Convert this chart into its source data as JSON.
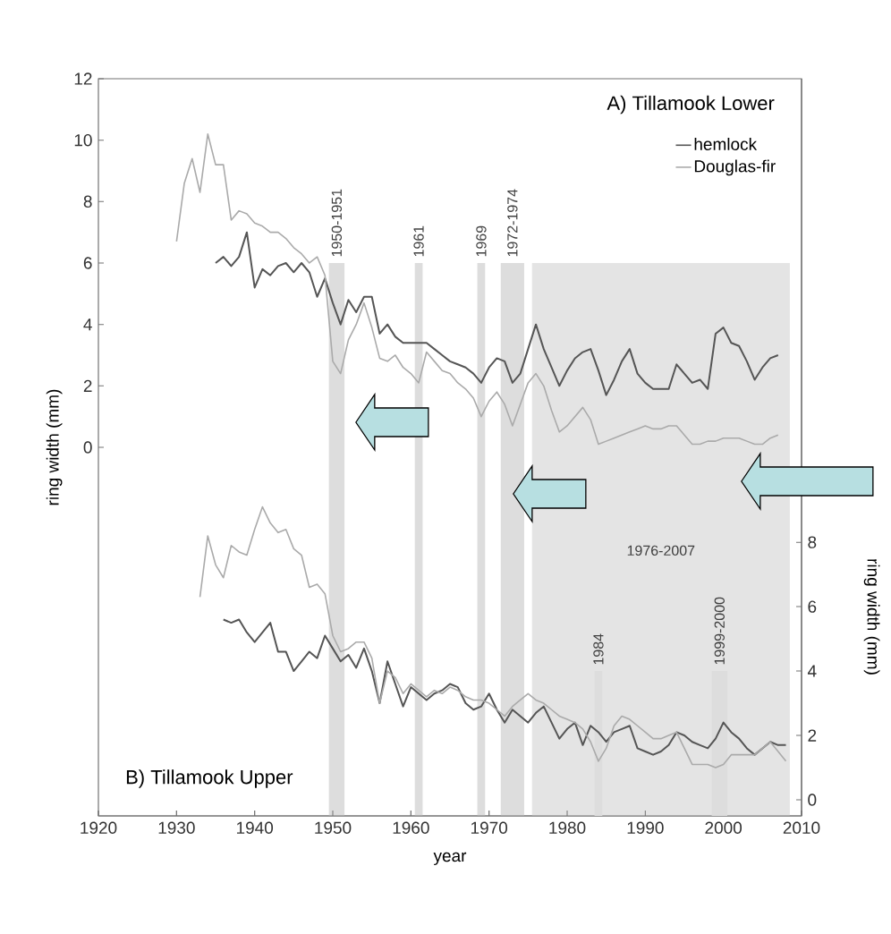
{
  "chart_data": [
    {
      "type": "line",
      "title": "A) Tillamook Lower",
      "ylabel": "ring width (mm)",
      "xlim": [
        1920,
        2010
      ],
      "xticks": [
        1920,
        1930,
        1940,
        1950,
        1960,
        1970,
        1980,
        1990,
        2000,
        2010
      ],
      "tick_labels": "y",
      "ylim": [
        -12,
        12
      ],
      "yticks": [
        0,
        2,
        4,
        6,
        8,
        10,
        12
      ],
      "legend": "top right",
      "bands": [
        {
          "axis": "x",
          "from": 1949.5,
          "to": 1951.5,
          "label": "1950-1951",
          "color": "#dddddd"
        },
        {
          "axis": "x",
          "from": 1960.5,
          "to": 1961.5,
          "label": "1961",
          "color": "#dddddd"
        },
        {
          "axis": "x",
          "from": 1968.5,
          "to": 1969.5,
          "label": "1969",
          "color": "#dddddd"
        },
        {
          "axis": "x",
          "from": 1971.5,
          "to": 1974.5,
          "label": "1972-1974",
          "color": "#dddddd"
        },
        {
          "axis": "x",
          "from": 1975.5,
          "to": 2008.5,
          "label": "1976-2007",
          "color": "#e4e4e4"
        }
      ],
      "series": [
        {
          "name": "hemlock",
          "color": "#555555",
          "x": [
            1935,
            1936,
            1937,
            1938,
            1939,
            1940,
            1941,
            1942,
            1943,
            1944,
            1945,
            1946,
            1947,
            1948,
            1949,
            1950,
            1951,
            1952,
            1953,
            1954,
            1955,
            1956,
            1957,
            1958,
            1959,
            1960,
            1961,
            1962,
            1963,
            1964,
            1965,
            1966,
            1967,
            1968,
            1969,
            1970,
            1971,
            1972,
            1973,
            1974,
            1975,
            1976,
            1977,
            1978,
            1979,
            1980,
            1981,
            1982,
            1983,
            1984,
            1985,
            1986,
            1987,
            1988,
            1989,
            1990,
            1991,
            1992,
            1993,
            1994,
            1995,
            1996,
            1997,
            1998,
            1999,
            2000,
            2001,
            2002,
            2003,
            2004,
            2005,
            2006,
            2007
          ],
          "values": [
            6.0,
            6.2,
            5.9,
            6.2,
            7.0,
            5.2,
            5.8,
            5.6,
            5.9,
            6.0,
            5.7,
            6.0,
            5.7,
            4.9,
            5.5,
            4.7,
            4.0,
            4.8,
            4.4,
            4.9,
            4.9,
            3.7,
            4.0,
            3.6,
            3.4,
            3.4,
            3.4,
            3.4,
            3.2,
            3.0,
            2.8,
            2.7,
            2.6,
            2.4,
            2.1,
            2.6,
            2.9,
            2.8,
            2.1,
            2.4,
            3.2,
            4.0,
            3.2,
            2.6,
            2.0,
            2.5,
            2.9,
            3.1,
            3.2,
            2.5,
            1.7,
            2.2,
            2.8,
            3.2,
            2.4,
            2.1,
            1.9,
            1.9,
            1.9,
            2.7,
            2.4,
            2.1,
            2.2,
            1.9,
            3.7,
            3.9,
            3.4,
            3.3,
            2.8,
            2.2,
            2.6,
            2.9,
            3.0
          ]
        },
        {
          "name": "Douglas-fir",
          "color": "#aaaaaa",
          "x": [
            1930,
            1931,
            1932,
            1933,
            1934,
            1935,
            1936,
            1937,
            1938,
            1939,
            1940,
            1941,
            1942,
            1943,
            1944,
            1945,
            1946,
            1947,
            1948,
            1949,
            1950,
            1951,
            1952,
            1953,
            1954,
            1955,
            1956,
            1957,
            1958,
            1959,
            1960,
            1961,
            1962,
            1963,
            1964,
            1965,
            1966,
            1967,
            1968,
            1969,
            1970,
            1971,
            1972,
            1973,
            1974,
            1975,
            1976,
            1977,
            1978,
            1979,
            1980,
            1981,
            1982,
            1983,
            1984,
            1985,
            1986,
            1987,
            1988,
            1989,
            1990,
            1991,
            1992,
            1993,
            1994,
            1995,
            1996,
            1997,
            1998,
            1999,
            2000,
            2001,
            2002,
            2003,
            2004,
            2005,
            2006,
            2007
          ],
          "values": [
            6.7,
            8.6,
            9.4,
            8.3,
            10.2,
            9.2,
            9.2,
            7.4,
            7.7,
            7.6,
            7.3,
            7.2,
            7.0,
            7.0,
            6.8,
            6.5,
            6.3,
            6.0,
            6.2,
            5.6,
            2.8,
            2.4,
            3.5,
            4.0,
            4.7,
            3.9,
            2.9,
            2.8,
            3.0,
            2.6,
            2.4,
            2.1,
            3.1,
            2.8,
            2.5,
            2.4,
            2.1,
            1.9,
            1.6,
            1.0,
            1.5,
            1.8,
            1.4,
            0.7,
            1.4,
            2.1,
            2.4,
            2.0,
            1.2,
            0.5,
            0.7,
            1.0,
            1.3,
            0.9,
            0.1,
            0.2,
            0.3,
            0.4,
            0.5,
            0.6,
            0.7,
            0.6,
            0.6,
            0.7,
            0.7,
            0.4,
            0.1,
            0.1,
            0.2,
            0.2,
            0.3,
            0.3,
            0.3,
            0.2,
            0.1,
            0.1,
            0.3,
            0.4
          ]
        }
      ]
    },
    {
      "type": "line",
      "title": "B) Tillamook Upper",
      "xlabel": "year",
      "y2label": "ring width (mm)",
      "xlim": [
        1920,
        2010
      ],
      "xticks": [
        1920,
        1930,
        1940,
        1950,
        1960,
        1970,
        1980,
        1990,
        2000,
        2010
      ],
      "y2lim": [
        -0.5,
        22.4
      ],
      "y2ticks": [
        0,
        2,
        4,
        6,
        8
      ],
      "bands": [
        {
          "axis": "x",
          "from": 1983.5,
          "to": 1984.5,
          "label": "1984",
          "color": "#dddddd"
        },
        {
          "axis": "x",
          "from": 1998.5,
          "to": 2000.5,
          "label": "1999-2000",
          "color": "#dddddd"
        }
      ],
      "series": [
        {
          "color": "#555555",
          "axis": "y2",
          "x": [
            1936,
            1937,
            1938,
            1939,
            1940,
            1941,
            1942,
            1943,
            1944,
            1945,
            1946,
            1947,
            1948,
            1949,
            1950,
            1951,
            1952,
            1953,
            1954,
            1955,
            1956,
            1957,
            1958,
            1959,
            1960,
            1961,
            1962,
            1963,
            1964,
            1965,
            1966,
            1967,
            1968,
            1969,
            1970,
            1971,
            1972,
            1973,
            1974,
            1975,
            1976,
            1977,
            1978,
            1979,
            1980,
            1981,
            1982,
            1983,
            1984,
            1985,
            1986,
            1987,
            1988,
            1989,
            1990,
            1991,
            1992,
            1993,
            1994,
            1995,
            1996,
            1997,
            1998,
            1999,
            2000,
            2001,
            2002,
            2003,
            2004,
            2005,
            2006,
            2007,
            2008
          ],
          "values": [
            5.6,
            5.5,
            5.6,
            5.2,
            4.9,
            5.2,
            5.5,
            4.6,
            4.6,
            4.0,
            4.3,
            4.6,
            4.4,
            5.1,
            4.7,
            4.3,
            4.5,
            4.1,
            4.7,
            4.0,
            3.0,
            4.3,
            3.6,
            2.9,
            3.5,
            3.3,
            3.1,
            3.3,
            3.4,
            3.6,
            3.5,
            3.0,
            2.8,
            2.9,
            3.3,
            2.8,
            2.4,
            2.8,
            2.6,
            2.4,
            2.7,
            2.9,
            2.4,
            1.9,
            2.2,
            2.4,
            1.7,
            2.3,
            2.1,
            1.8,
            2.1,
            2.2,
            2.3,
            1.6,
            1.5,
            1.4,
            1.5,
            1.7,
            2.1,
            2.0,
            1.8,
            1.7,
            1.6,
            1.9,
            2.4,
            2.1,
            1.9,
            1.6,
            1.4,
            1.6,
            1.8,
            1.7,
            1.7
          ]
        },
        {
          "color": "#aaaaaa",
          "axis": "y2",
          "x": [
            1933,
            1934,
            1935,
            1936,
            1937,
            1938,
            1939,
            1940,
            1941,
            1942,
            1943,
            1944,
            1945,
            1946,
            1947,
            1948,
            1949,
            1950,
            1951,
            1952,
            1953,
            1954,
            1955,
            1956,
            1957,
            1958,
            1959,
            1960,
            1961,
            1962,
            1963,
            1964,
            1965,
            1966,
            1967,
            1968,
            1969,
            1970,
            1971,
            1972,
            1973,
            1974,
            1975,
            1976,
            1977,
            1978,
            1979,
            1980,
            1981,
            1982,
            1983,
            1984,
            1985,
            1986,
            1987,
            1988,
            1989,
            1990,
            1991,
            1992,
            1993,
            1994,
            1995,
            1996,
            1997,
            1998,
            1999,
            2000,
            2001,
            2002,
            2003,
            2004,
            2005,
            2006,
            2007,
            2008
          ],
          "values": [
            6.3,
            8.2,
            7.3,
            6.9,
            7.9,
            7.7,
            7.6,
            8.4,
            9.1,
            8.6,
            8.3,
            8.4,
            7.8,
            7.6,
            6.6,
            6.7,
            6.4,
            5.1,
            4.6,
            4.7,
            4.9,
            4.9,
            4.4,
            3.0,
            4.0,
            3.8,
            3.3,
            3.6,
            3.4,
            3.2,
            3.4,
            3.3,
            3.5,
            3.4,
            3.2,
            3.1,
            3.1,
            3.0,
            2.8,
            2.6,
            2.9,
            3.1,
            3.3,
            3.1,
            3.0,
            2.8,
            2.6,
            2.5,
            2.4,
            2.2,
            1.8,
            1.2,
            1.6,
            2.3,
            2.6,
            2.5,
            2.3,
            2.1,
            1.9,
            1.9,
            2.0,
            2.1,
            1.6,
            1.1,
            1.1,
            1.1,
            1.0,
            1.1,
            1.4,
            1.4,
            1.4,
            1.4,
            1.6,
            1.8,
            1.5,
            1.2
          ]
        }
      ]
    }
  ]
}
